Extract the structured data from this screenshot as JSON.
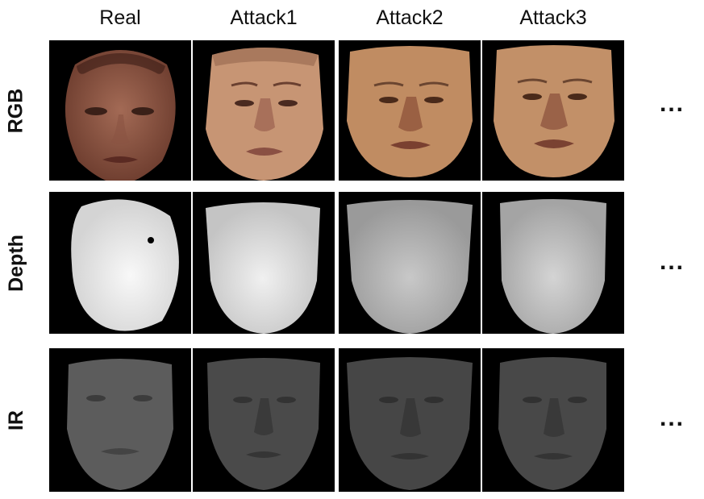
{
  "columns": [
    "Real",
    "Attack1",
    "Attack2",
    "Attack3"
  ],
  "rows": [
    "RGB",
    "Depth",
    "IR"
  ],
  "continuation": "..."
}
